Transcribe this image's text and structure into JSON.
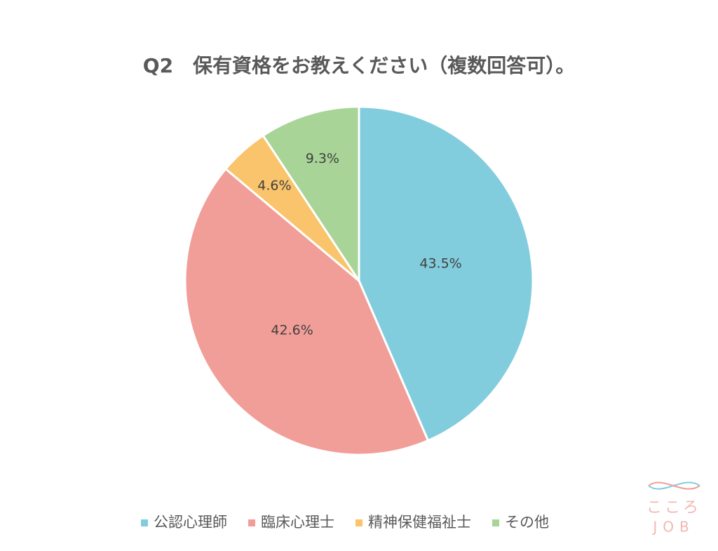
{
  "chart_data": {
    "type": "pie",
    "title": "Q2　保有資格をお教えください（複数回答可）。",
    "categories": [
      "公認心理師",
      "臨床心理士",
      "精神保健福祉士",
      "その他"
    ],
    "values": [
      43.5,
      42.6,
      4.6,
      9.3
    ],
    "value_labels": [
      "43.5%",
      "42.6%",
      "4.6%",
      "9.3%"
    ],
    "colors": [
      "#82cddd",
      "#f29e98",
      "#f9c46b",
      "#a8d497"
    ],
    "legend": "bottom"
  },
  "logo": [
    "こころ",
    "JOB"
  ]
}
